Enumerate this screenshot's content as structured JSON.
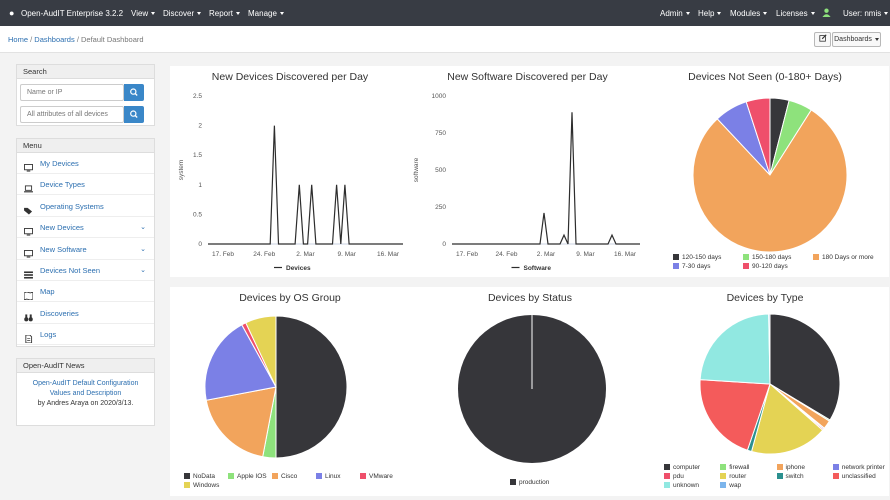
{
  "nav": {
    "brand": "Open-AudIT Enterprise 3.2.2",
    "left_menus": [
      "View",
      "Discover",
      "Report",
      "Manage"
    ],
    "right_menus": [
      "Admin",
      "Help",
      "Modules",
      "Licenses"
    ],
    "user": "User: nmis"
  },
  "breadcrumb": {
    "home": "Home",
    "dashboards": "Dashboards",
    "current": "Default Dashboard",
    "dashboards_button": "Dashboards"
  },
  "search": {
    "title": "Search",
    "name_placeholder": "Name or IP",
    "attr_placeholder": "All attributes of all devices"
  },
  "menu": {
    "title": "Menu",
    "items": [
      {
        "label": "My Devices",
        "icon": "monitor-icon",
        "expand": false
      },
      {
        "label": "Device Types",
        "icon": "laptop-icon",
        "expand": false
      },
      {
        "label": "Operating Systems",
        "icon": "tags-icon",
        "expand": false
      },
      {
        "label": "New Devices",
        "icon": "monitor-icon",
        "expand": true
      },
      {
        "label": "New Software",
        "icon": "monitor-icon",
        "expand": true
      },
      {
        "label": "Devices Not Seen",
        "icon": "list-icon",
        "expand": true
      },
      {
        "label": "Map",
        "icon": "map-icon",
        "expand": false
      },
      {
        "label": "Discoveries",
        "icon": "binoculars-icon",
        "expand": false
      },
      {
        "label": "Logs",
        "icon": "file-icon",
        "expand": false
      }
    ]
  },
  "news": {
    "title": "Open-AudIT News",
    "link": "Open-AudIT Default Configuration Values and Description",
    "byline": "by Andres Araya on 2020/3/13."
  },
  "colors": {
    "series": "#2d2d2d",
    "accent": "#3a87c8",
    "nav_bg": "#383c44"
  },
  "chart_data": [
    {
      "type": "line",
      "title": "New Devices Discovered per Day",
      "ylabel": "system",
      "ylim": [
        0,
        2.5
      ],
      "yticks": [
        "0",
        "0.5",
        "1",
        "1.5",
        "2",
        "2.5"
      ],
      "xticks": [
        "17. Feb",
        "24. Feb",
        "2. Mar",
        "9. Mar",
        "16. Mar"
      ],
      "series": [
        {
          "name": "Devices",
          "values": [
            0,
            0,
            0,
            0,
            0,
            0,
            0,
            0,
            0,
            0,
            0,
            0,
            0,
            0,
            0,
            0,
            2,
            0,
            0,
            0,
            0,
            0,
            1,
            0,
            0,
            1,
            0,
            0,
            0,
            0,
            0,
            1,
            0,
            1,
            0,
            0,
            0,
            0,
            0,
            0,
            0,
            0,
            0,
            0,
            0,
            0,
            0,
            0
          ]
        }
      ]
    },
    {
      "type": "line",
      "title": "New Software Discovered per Day",
      "ylabel": "software",
      "ylim": [
        0,
        1000
      ],
      "yticks": [
        "0",
        "250",
        "500",
        "750",
        "1000"
      ],
      "xticks": [
        "17. Feb",
        "24. Feb",
        "2. Mar",
        "9. Mar",
        "16. Mar"
      ],
      "series": [
        {
          "name": "Software",
          "values": [
            0,
            0,
            0,
            0,
            0,
            0,
            0,
            0,
            0,
            0,
            0,
            0,
            0,
            0,
            0,
            0,
            0,
            0,
            0,
            0,
            0,
            0,
            0,
            210,
            0,
            0,
            0,
            0,
            60,
            0,
            890,
            0,
            0,
            0,
            0,
            0,
            0,
            0,
            0,
            0,
            60,
            0,
            0,
            0,
            0,
            0,
            0,
            0
          ]
        }
      ]
    },
    {
      "type": "pie",
      "title": "Devices Not Seen (0-180+ Days)",
      "slices": [
        {
          "label": "120-150 days",
          "value": 4,
          "color": "#36363a"
        },
        {
          "label": "150-180 days",
          "value": 5,
          "color": "#8ee27c"
        },
        {
          "label": "180 Days or more",
          "value": 79,
          "color": "#f2a45c"
        },
        {
          "label": "7-30 days",
          "value": 7,
          "color": "#7b80e6"
        },
        {
          "label": "90-120 days",
          "value": 5,
          "color": "#ef4f6b"
        }
      ]
    },
    {
      "type": "pie",
      "title": "Devices by OS Group",
      "slices": [
        {
          "label": "NoData",
          "value": 50,
          "color": "#36363a"
        },
        {
          "label": "Apple IOS",
          "value": 3,
          "color": "#8ee27c"
        },
        {
          "label": "Cisco",
          "value": 19,
          "color": "#f2a45c"
        },
        {
          "label": "Linux",
          "value": 20,
          "color": "#7b80e6"
        },
        {
          "label": "VMware",
          "value": 1,
          "color": "#ef4f6b"
        },
        {
          "label": "Windows",
          "value": 7,
          "color": "#e4d354"
        }
      ]
    },
    {
      "type": "pie",
      "title": "Devices by Status",
      "slices": [
        {
          "label": "production",
          "value": 100,
          "color": "#36363a"
        }
      ]
    },
    {
      "type": "pie",
      "title": "Devices by Type",
      "slices": [
        {
          "label": "computer",
          "value": 34,
          "color": "#36363a"
        },
        {
          "label": "firewall",
          "value": 0.3,
          "color": "#8ee27c"
        },
        {
          "label": "iphone",
          "value": 2,
          "color": "#f2a45c"
        },
        {
          "label": "network printer",
          "value": 0.3,
          "color": "#7b80e6"
        },
        {
          "label": "pdu",
          "value": 0.3,
          "color": "#ef4f6b"
        },
        {
          "label": "router",
          "value": 18,
          "color": "#e4d354"
        },
        {
          "label": "switch",
          "value": 1,
          "color": "#2b908f"
        },
        {
          "label": "unclassified",
          "value": 21,
          "color": "#f45b5b"
        },
        {
          "label": "unknown",
          "value": 24,
          "color": "#91e8e1"
        },
        {
          "label": "wap",
          "value": 0.3,
          "color": "#7cb5ec"
        }
      ]
    }
  ]
}
